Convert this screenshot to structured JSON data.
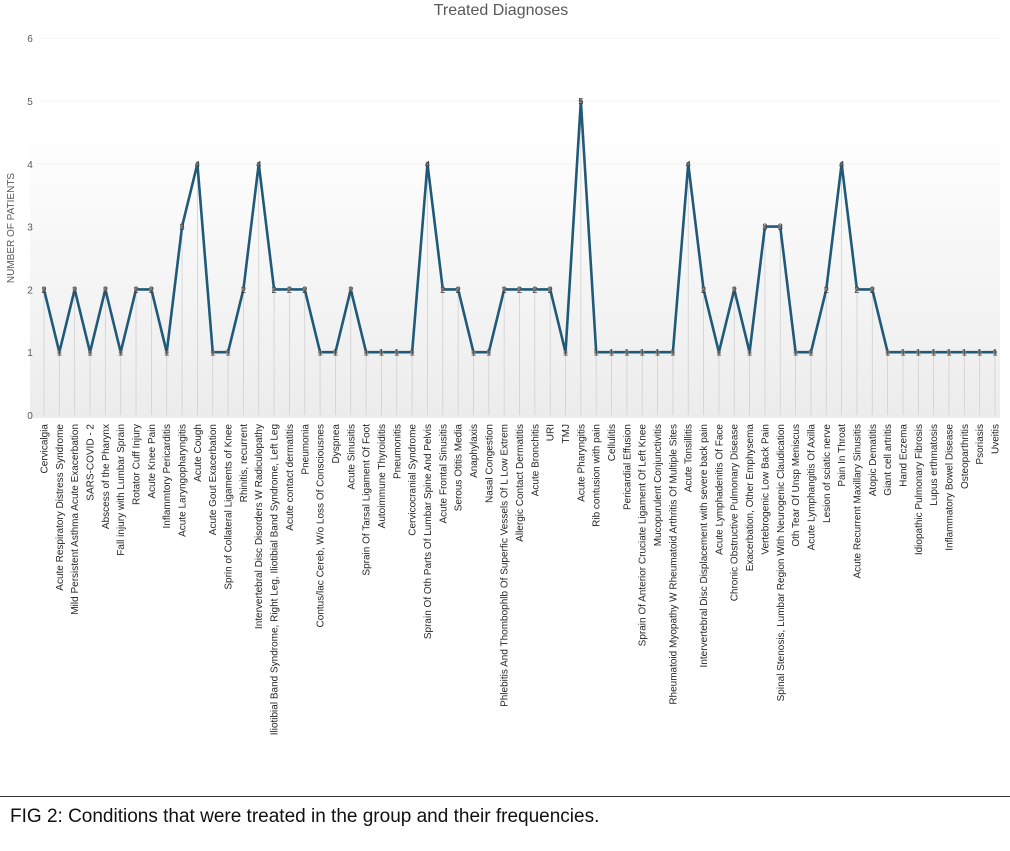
{
  "chart_data": {
    "type": "line",
    "title": "Treated Diagnoses",
    "ylabel": "NUMBER OF PATIENTS",
    "xlabel": "",
    "ylim": [
      0,
      6
    ],
    "yticks": [
      0,
      1,
      2,
      3,
      4,
      5,
      6
    ],
    "grid": true,
    "data_labels": true,
    "colors": {
      "line": "#1f5a78",
      "marker": "#7f7f7f",
      "plot_bg_top": "#ffffff",
      "plot_bg_bottom": "#ececec",
      "droplines": "#d0d0d0",
      "text": "#595959"
    },
    "categories": [
      "Cervicalgia",
      "Acute Respiratory Distress Syndrome",
      "Mild Persistent Asthma Acute Exacerbation",
      "SARS-COVID - 2",
      "Abscess of the Pharynx",
      "Fall injury with Lumbar Sprain",
      "Rotator Cuff Injury",
      "Acute Knee Pain",
      "Inflammtory Pericarditis",
      "Acute Laryngopharyngitis",
      "Acute Cough",
      "Acute Gout Exacerbation",
      "Sprin of Collateral Ligaments of Knee",
      "Rhinitis, recurrent",
      "Intervertebral Disc Disorders W Radiculopathy",
      "Iliotibial Band Syndrome, Right Leg, Iliotibial Band Syndrome, Left Leg",
      "Acute contact dermatitis",
      "Pneumonia",
      "Contus/lac Cereb, W/o Loss Of Consciousnes",
      "Dyspnea",
      "Acute Sinusitis",
      "Sprain Of Tarsal Ligament Of Foot",
      "Autoimmune Thyroiditis",
      "Pneumonitis",
      "Cervicocranial Syndrome",
      "Sprain Of Oth Parts Of Lumbar Spine And Pelvis",
      "Acute Frontal Sinusitis",
      "Serous Otitis Media",
      "Anaphylaxis",
      "Nasal Congestion",
      "Phlebitis And Thombophlb Of Superfic Vessels Of L Low Extrem",
      "Allergic Contact Dermatitis",
      "Acute Bronchitis",
      "URI",
      "TMJ",
      "Acute Pharyngitis",
      "Rib contusion with pain",
      "Cellulitis",
      "Pericardial Effusion",
      "Sprain Of Anterior Cruciate Ligament Of Left Knee",
      "Mucopurulent Conjunctivitis",
      "Rheumatoid Myopathy W Rheumatoid Arthritis Of Multiple Sites",
      "Acute Tonsillitis",
      "Intervertebral Disc Displacement with severe back pain",
      "Acute Lymphadenitis Of Face",
      "Chronic Obstructive Pulmonary Disease",
      "Exacerbation, Other Emphysema",
      "Vertebrogenic Low Back Pain",
      "Spinal Stenosis, Lumbar Region With Neurogenic Claudication",
      "Oth Tear Of Unsp Meniscus",
      "Acute Lymphangitis Of Axilla",
      "Lesion of sciatic nerve",
      "Pain In Throat",
      "Acute Recurrent Maxillary Sinusitis",
      "Atopic Dematitis",
      "Giant cell artritis",
      "Hand Eczema",
      "Idiopathic Pulmonary Fibrosis",
      "Lupus erthmatosis",
      "Inflammatory Bowel Disease",
      "Osteoparthritis",
      "Psoriasis",
      "Uveitis"
    ],
    "series": [
      {
        "values": [
          2,
          1,
          2,
          1,
          2,
          1,
          2,
          2,
          1,
          3,
          4,
          1,
          1,
          2,
          4,
          2,
          2,
          2,
          1,
          1,
          2,
          1,
          1,
          1,
          1,
          4,
          2,
          2,
          1,
          1,
          2,
          2,
          2,
          2,
          1,
          5,
          1,
          1,
          1,
          1,
          1,
          1,
          4,
          2,
          1,
          2,
          1,
          3,
          3,
          1,
          1,
          2,
          4,
          2,
          2,
          1,
          1,
          1,
          1,
          1,
          1,
          1,
          1
        ]
      }
    ]
  },
  "caption": "FIG 2: Conditions that were treated in the group and their frequencies."
}
